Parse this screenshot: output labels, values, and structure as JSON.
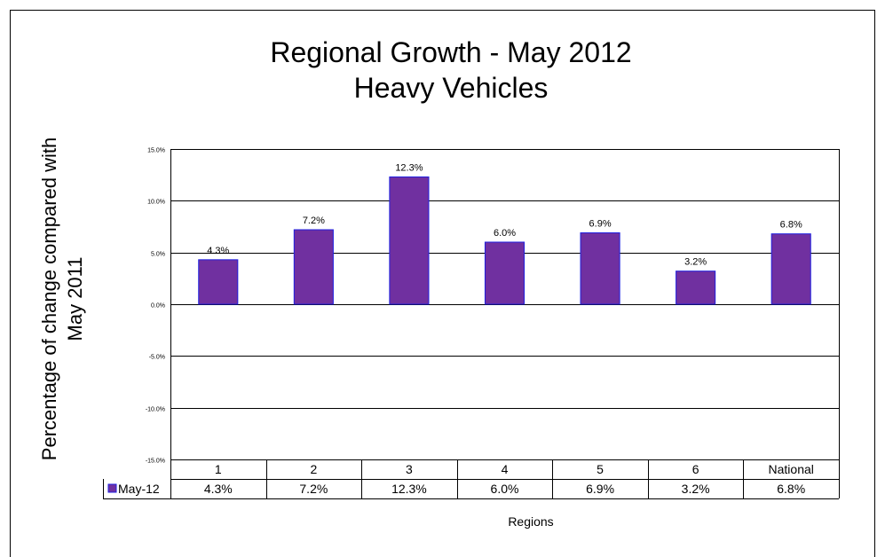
{
  "chart_data": {
    "type": "bar",
    "title": "Regional Growth - May 2012",
    "subtitle": "Heavy Vehicles",
    "ylabel_line1": "Percentage of change compared with",
    "ylabel_line2": "May 2011",
    "xlabel": "Regions",
    "categories": [
      "1",
      "2",
      "3",
      "4",
      "5",
      "6",
      "National"
    ],
    "series": [
      {
        "name": "May-12",
        "values": [
          4.3,
          7.2,
          12.3,
          6.0,
          6.9,
          3.2,
          6.8
        ],
        "labels": [
          "4.3%",
          "7.2%",
          "12.3%",
          "6.0%",
          "6.9%",
          "3.2%",
          "6.8%"
        ],
        "color": "#7030a0",
        "edge_color": "#1f1fe0"
      }
    ],
    "ylim": [
      -15,
      15
    ],
    "yticks": [
      15,
      10,
      5,
      0,
      -5,
      -10,
      -15
    ],
    "ytick_labels": [
      "15.0%",
      "10.0%",
      "5.0%",
      "0.0%",
      "-5.0%",
      "-10.0%",
      "-15.0%"
    ],
    "grid": true,
    "data_table": true,
    "legend_placement": "data table row"
  }
}
